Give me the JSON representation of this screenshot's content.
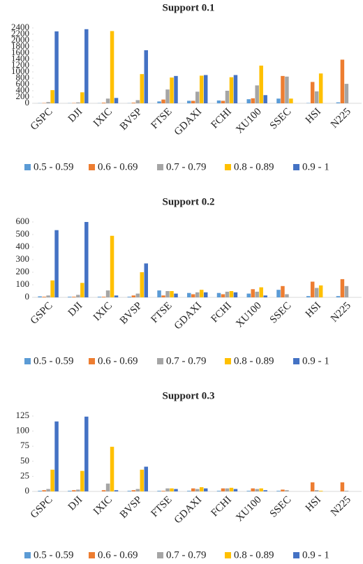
{
  "chart_data": [
    {
      "type": "bar",
      "title": "Support 0.1",
      "categories": [
        "GSPC",
        "DJI",
        "IXIC",
        "BVSP",
        "FTSE",
        "GDAXI",
        "FCHI",
        "XU100",
        "SSEC",
        "HSI",
        "N225"
      ],
      "series": [
        {
          "name": "0.5 - 0.59",
          "color": "#5b9bd5",
          "values": [
            5,
            5,
            5,
            5,
            60,
            80,
            90,
            130,
            150,
            10,
            30
          ]
        },
        {
          "name": "0.6 - 0.69",
          "color": "#ed7d31",
          "values": [
            10,
            10,
            20,
            20,
            120,
            80,
            80,
            160,
            870,
            680,
            1390
          ]
        },
        {
          "name": "0.7 - 0.79",
          "color": "#a5a5a5",
          "values": [
            40,
            30,
            150,
            100,
            440,
            370,
            400,
            570,
            850,
            380,
            620
          ]
        },
        {
          "name": "0.8 - 0.89",
          "color": "#ffc000",
          "values": [
            420,
            350,
            2300,
            930,
            820,
            880,
            830,
            1200,
            150,
            950,
            0
          ]
        },
        {
          "name": "0.9 - 1",
          "color": "#4472c4",
          "values": [
            2290,
            2360,
            170,
            1690,
            870,
            900,
            900,
            260,
            0,
            0,
            0
          ]
        }
      ],
      "ylim": [
        0,
        2400
      ],
      "yticks": [
        0,
        200,
        400,
        600,
        800,
        1000,
        1200,
        1400,
        1600,
        1800,
        2000,
        2200,
        2400
      ]
    },
    {
      "type": "bar",
      "title": "Support 0.2",
      "categories": [
        "GSPC",
        "DJI",
        "IXIC",
        "BVSP",
        "FTSE",
        "GDAXI",
        "FCHI",
        "XU100",
        "SSEC",
        "HSI",
        "N225"
      ],
      "series": [
        {
          "name": "0.5 - 0.59",
          "color": "#5b9bd5",
          "values": [
            8,
            5,
            5,
            5,
            55,
            35,
            35,
            30,
            60,
            10,
            10
          ]
        },
        {
          "name": "0.6 - 0.69",
          "color": "#ed7d31",
          "values": [
            5,
            5,
            5,
            15,
            15,
            25,
            25,
            65,
            90,
            125,
            145
          ]
        },
        {
          "name": "0.7 - 0.79",
          "color": "#a5a5a5",
          "values": [
            15,
            20,
            55,
            30,
            50,
            40,
            45,
            45,
            25,
            75,
            90
          ]
        },
        {
          "name": "0.8 - 0.89",
          "color": "#ffc000",
          "values": [
            135,
            115,
            490,
            200,
            50,
            60,
            50,
            80,
            0,
            95,
            0
          ]
        },
        {
          "name": "0.9 - 1",
          "color": "#4472c4",
          "values": [
            535,
            600,
            15,
            270,
            30,
            40,
            40,
            15,
            0,
            0,
            0
          ]
        }
      ],
      "ylim": [
        0,
        600
      ],
      "yticks": [
        0,
        100,
        200,
        300,
        400,
        500,
        600
      ]
    },
    {
      "type": "bar",
      "title": "Support 0.3",
      "categories": [
        "GSPC",
        "DJI",
        "IXIC",
        "BVSP",
        "FTSE",
        "GDAXI",
        "FCHI",
        "XU100",
        "SSEC",
        "HSI",
        "N225"
      ],
      "series": [
        {
          "name": "0.5 - 0.59",
          "color": "#5b9bd5",
          "values": [
            1,
            1,
            0,
            1,
            1,
            1,
            1,
            1,
            1,
            0,
            0
          ]
        },
        {
          "name": "0.6 - 0.69",
          "color": "#ed7d31",
          "values": [
            2,
            2,
            2,
            2,
            1,
            5,
            5,
            5,
            3,
            15,
            15
          ]
        },
        {
          "name": "0.7 - 0.79",
          "color": "#a5a5a5",
          "values": [
            4,
            3,
            13,
            4,
            5,
            4,
            5,
            4,
            2,
            2,
            1
          ]
        },
        {
          "name": "0.8 - 0.89",
          "color": "#ffc000",
          "values": [
            36,
            34,
            74,
            36,
            5,
            7,
            6,
            5,
            0,
            1,
            0
          ]
        },
        {
          "name": "0.9 - 1",
          "color": "#4472c4",
          "values": [
            116,
            124,
            2,
            41,
            4,
            5,
            4,
            2,
            0,
            0,
            0
          ]
        }
      ],
      "ylim": [
        0,
        125
      ],
      "yticks": [
        0,
        25,
        50,
        75,
        100,
        125
      ]
    }
  ]
}
